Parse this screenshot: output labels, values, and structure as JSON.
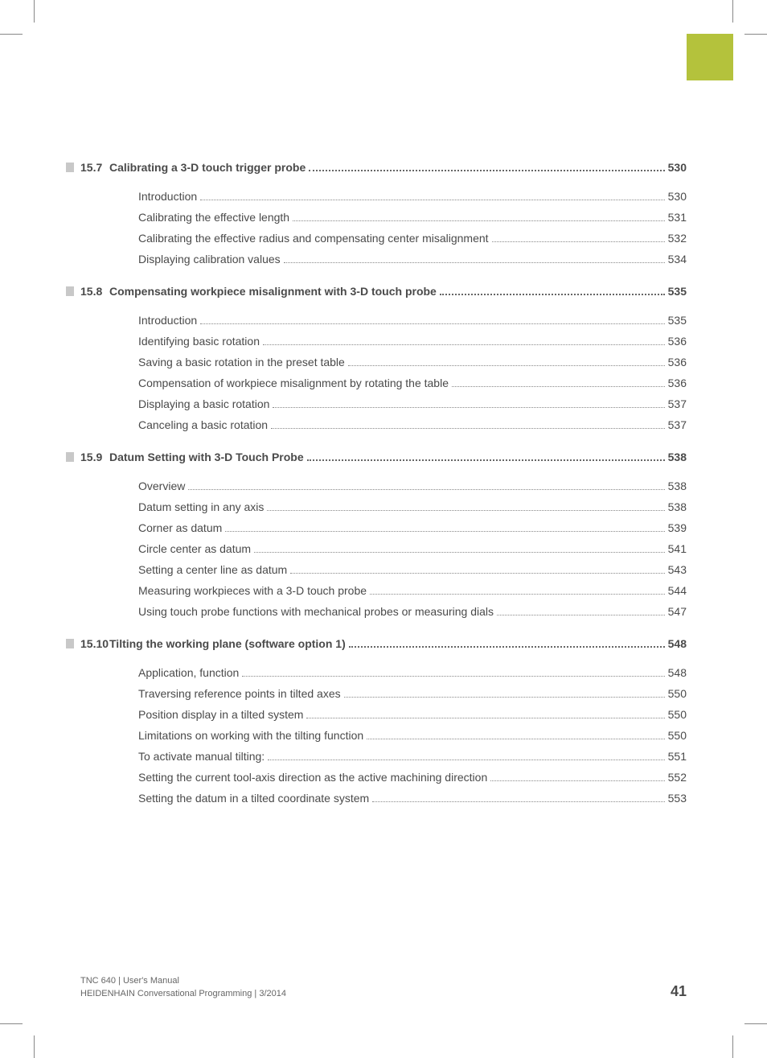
{
  "accent_color": "#b4c23c",
  "text_color": "#4a4a4a",
  "section_bar_color": "#c8c8c8",
  "sections": [
    {
      "number": "15.7",
      "title": "Calibrating a 3-D touch trigger probe",
      "page": "530",
      "entries": [
        {
          "title": "Introduction",
          "page": "530"
        },
        {
          "title": "Calibrating the effective length",
          "page": "531"
        },
        {
          "title": "Calibrating the effective radius and compensating center misalignment",
          "page": "532"
        },
        {
          "title": "Displaying calibration values",
          "page": "534"
        }
      ]
    },
    {
      "number": "15.8",
      "title": "Compensating workpiece misalignment with 3-D touch probe",
      "page": "535",
      "entries": [
        {
          "title": "Introduction",
          "page": "535"
        },
        {
          "title": "Identifying basic rotation",
          "page": "536"
        },
        {
          "title": "Saving a basic rotation in the preset table",
          "page": "536"
        },
        {
          "title": "Compensation of workpiece misalignment by rotating the table",
          "page": "536"
        },
        {
          "title": "Displaying a basic rotation",
          "page": "537"
        },
        {
          "title": "Canceling a basic rotation",
          "page": "537"
        }
      ]
    },
    {
      "number": "15.9",
      "title": "Datum Setting with 3-D Touch Probe",
      "page": "538",
      "entries": [
        {
          "title": "Overview",
          "page": "538"
        },
        {
          "title": "Datum setting in any axis",
          "page": "538"
        },
        {
          "title": "Corner as datum",
          "page": "539"
        },
        {
          "title": "Circle center as datum",
          "page": "541"
        },
        {
          "title": "Setting a center line as datum",
          "page": "543"
        },
        {
          "title": "Measuring workpieces with a 3-D touch probe",
          "page": "544"
        },
        {
          "title": "Using touch probe functions with mechanical probes or measuring dials",
          "page": "547"
        }
      ]
    },
    {
      "number": "15.10",
      "title": "Tilting the working plane (software option 1)",
      "page": "548",
      "entries": [
        {
          "title": "Application, function",
          "page": "548"
        },
        {
          "title": "Traversing reference points in tilted axes",
          "page": "550"
        },
        {
          "title": "Position display in a tilted system",
          "page": "550"
        },
        {
          "title": "Limitations on working with the tilting function",
          "page": "550"
        },
        {
          "title": "To activate manual tilting:",
          "page": "551"
        },
        {
          "title": "Setting the current tool-axis direction as the active machining direction",
          "page": "552"
        },
        {
          "title": "Setting the datum in a tilted coordinate system",
          "page": "553"
        }
      ]
    }
  ],
  "footer": {
    "line1": "TNC 640 | User's Manual",
    "line2": "HEIDENHAIN Conversational Programming | 3/2014",
    "page_number": "41"
  }
}
